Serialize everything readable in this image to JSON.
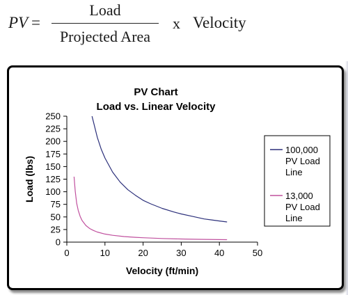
{
  "equation": {
    "lhs": "PV",
    "equals": "=",
    "numerator": "Load",
    "denominator": "Projected Area",
    "operator": "x",
    "rhs": "Velocity"
  },
  "chart_data": {
    "type": "line",
    "title_lines": [
      "PV Chart",
      "Load vs. Linear Velocity"
    ],
    "xlabel": "Velocity (ft/min)",
    "ylabel": "Load (lbs)",
    "xlim": [
      0,
      50
    ],
    "ylim": [
      0,
      250
    ],
    "x_ticks": [
      0,
      10,
      20,
      30,
      40,
      50
    ],
    "y_ticks": [
      0,
      25,
      50,
      75,
      100,
      125,
      150,
      175,
      200,
      225,
      250
    ],
    "grid": false,
    "legend_position": "right",
    "series": [
      {
        "legend_lines": [
          "100,000",
          "PV Load",
          "Line"
        ],
        "color": "#2b2f7a",
        "x": [
          6.6,
          7,
          8,
          9,
          10,
          12,
          14,
          16,
          18,
          20,
          22,
          25,
          28,
          30,
          33,
          36,
          38,
          40,
          42
        ],
        "y": [
          250,
          238,
          208,
          185,
          167,
          139,
          119,
          104,
          93,
          83,
          76,
          67,
          60,
          56,
          51,
          46,
          44,
          42,
          40
        ]
      },
      {
        "legend_lines": [
          "13,000",
          "PV Load",
          "Line"
        ],
        "color": "#c0509e",
        "x": [
          1.9,
          2.2,
          2.6,
          3,
          3.5,
          4,
          5,
          6,
          7,
          8,
          10,
          12,
          15,
          18,
          20,
          25,
          30,
          35,
          40,
          42
        ],
        "y": [
          130,
          101,
          77,
          63,
          51,
          43,
          33,
          27,
          23,
          20,
          16,
          13.5,
          11,
          9.5,
          8.7,
          7.2,
          6.2,
          5.5,
          5,
          4.8
        ]
      }
    ]
  }
}
